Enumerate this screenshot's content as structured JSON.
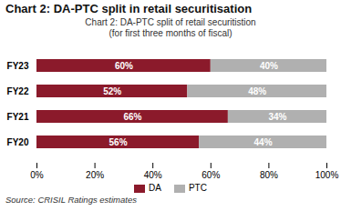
{
  "chart_data": {
    "type": "bar",
    "title": "Chart 2: DA-PTC split in retail securitisation",
    "subtitle": [
      "Chart 2: DA-PTC split of retail securitistion",
      "(for first three months of fiscal)"
    ],
    "source": "Source: CRISIL Ratings estimates",
    "orientation": "horizontal",
    "stacked": true,
    "data_labels": true,
    "grid": false,
    "legend": "bottom",
    "categories": [
      "FY20",
      "FY21",
      "FY22",
      "FY23"
    ],
    "series": [
      {
        "name": "DA",
        "color": "#8B1A2B",
        "values": [
          56,
          66,
          52,
          60
        ],
        "value_labels": [
          "56%",
          "66%",
          "52%",
          "60%"
        ]
      },
      {
        "name": "PTC",
        "color": "#B0B0B0",
        "values": [
          44,
          34,
          48,
          40
        ],
        "value_labels": [
          "44%",
          "34%",
          "48%",
          "40%"
        ]
      }
    ],
    "xlim": [
      0,
      100
    ],
    "xticks": [
      {
        "value": 0,
        "label": "0%"
      },
      {
        "value": 20,
        "label": "20%"
      },
      {
        "value": 40,
        "label": "40%"
      },
      {
        "value": 60,
        "label": "60%"
      },
      {
        "value": 80,
        "label": "80%"
      },
      {
        "value": 100,
        "label": "100%"
      }
    ]
  }
}
